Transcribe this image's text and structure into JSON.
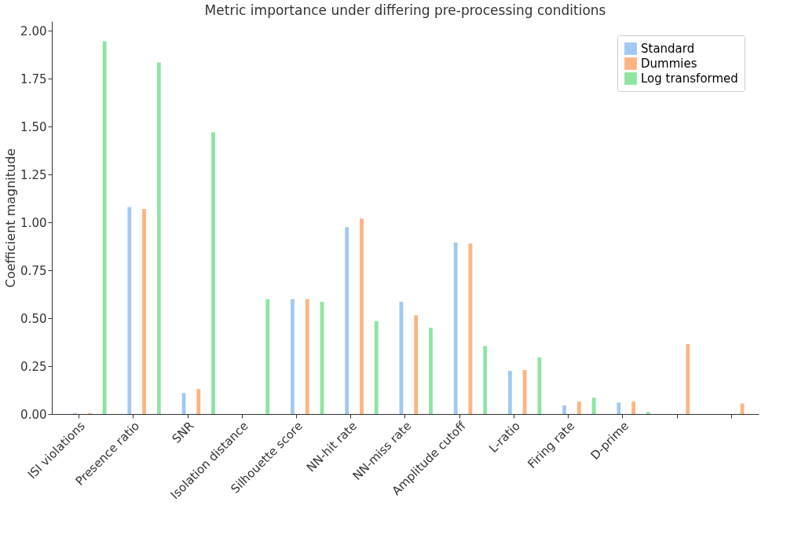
{
  "chart_data": {
    "type": "bar",
    "title": "Metric importance under differing pre-processing conditions",
    "ylabel": "Coefficient magnitude",
    "categories": [
      "ISI violations",
      "Presence ratio",
      "SNR",
      "Isolation distance",
      "Silhouette score",
      "NN-hit rate",
      "NN-miss rate",
      "Amplitude cutoff",
      "L-ratio",
      "Firing rate",
      "D-prime",
      null,
      null
    ],
    "series": [
      {
        "name": "Standard",
        "color": "#a1c9f4",
        "values": [
          0.005,
          1.08,
          0.11,
          0,
          0.6,
          0.975,
          0.585,
          0.895,
          0.225,
          0.045,
          0.06,
          0,
          0
        ]
      },
      {
        "name": "Dummies",
        "color": "#ffb482",
        "values": [
          0.005,
          1.07,
          0.13,
          0,
          0.6,
          1.02,
          0.515,
          0.89,
          0.23,
          0.065,
          0.065,
          0.365,
          0.055
        ]
      },
      {
        "name": "Log transformed",
        "color": "#8de5a1",
        "values": [
          1.945,
          1.835,
          1.47,
          0.6,
          0.585,
          0.485,
          0.45,
          0.355,
          0.295,
          0.085,
          0.01,
          0,
          0
        ]
      }
    ],
    "ylim": [
      0,
      2.05
    ],
    "yticks": [
      {
        "value": 0,
        "label": "0.00"
      },
      {
        "value": 0.25,
        "label": "0.25"
      },
      {
        "value": 0.5,
        "label": "0.50"
      },
      {
        "value": 0.75,
        "label": "0.75"
      },
      {
        "value": 1,
        "label": "1.00"
      },
      {
        "value": 1.25,
        "label": "1.25"
      },
      {
        "value": 1.5,
        "label": "1.50"
      },
      {
        "value": 1.75,
        "label": "1.75"
      },
      {
        "value": 2,
        "label": "2.00"
      }
    ],
    "legend": "top right",
    "grid": false
  }
}
